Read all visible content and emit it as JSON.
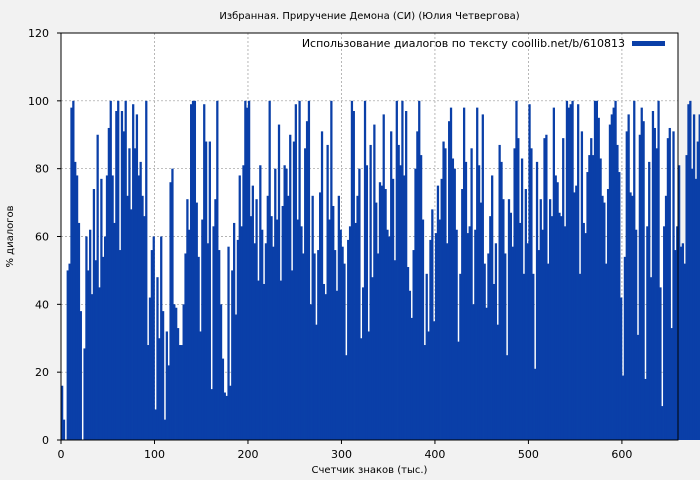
{
  "chart_data": {
    "type": "bar",
    "title": "Избранная. Приручение Демона (СИ) (Юлия Четвергова)",
    "xlabel": "Счетчик знаков (тыс.)",
    "ylabel": "% диалогов",
    "xlim": [
      0,
      660
    ],
    "ylim": [
      0,
      120
    ],
    "xticks": [
      0,
      100,
      200,
      300,
      400,
      500,
      600
    ],
    "yticks": [
      0,
      20,
      40,
      60,
      80,
      100,
      120
    ],
    "grid": true,
    "legend_position": "top-right",
    "bar_color": "#0a3fa8",
    "series": [
      {
        "name": "Использование диалогов по тексту coollib.net/b/610813",
        "x_start": 1,
        "x_step": 2,
        "values": [
          16,
          6,
          0,
          50,
          52,
          98,
          100,
          82,
          78,
          64,
          38,
          0,
          27,
          60,
          50,
          62,
          43,
          74,
          53,
          90,
          45,
          77,
          54,
          60,
          78,
          92,
          100,
          78,
          64,
          97,
          100,
          56,
          97,
          91,
          100,
          72,
          86,
          68,
          99,
          86,
          96,
          78,
          82,
          72,
          66,
          100,
          28,
          42,
          56,
          60,
          9,
          48,
          30,
          60,
          38,
          6,
          32,
          22,
          76,
          80,
          40,
          39,
          33,
          28,
          28,
          40,
          55,
          71,
          62,
          99,
          100,
          100,
          70,
          54,
          32,
          65,
          99,
          88,
          58,
          88,
          15,
          63,
          71,
          100,
          56,
          40,
          24,
          14,
          13,
          57,
          16,
          50,
          64,
          37,
          59,
          78,
          63,
          81,
          100,
          98,
          100,
          66,
          75,
          58,
          71,
          47,
          81,
          62,
          46,
          58,
          72,
          100,
          66,
          57,
          80,
          65,
          93,
          47,
          69,
          81,
          80,
          72,
          90,
          50,
          88,
          99,
          65,
          100,
          63,
          55,
          86,
          94,
          100,
          40,
          72,
          55,
          34,
          56,
          73,
          91,
          46,
          43,
          87,
          65,
          100,
          69,
          56,
          44,
          72,
          62,
          57,
          52,
          25,
          59,
          63,
          100,
          97,
          64,
          72,
          80,
          30,
          45,
          100,
          81,
          32,
          87,
          48,
          93,
          70,
          55,
          76,
          75,
          96,
          74,
          62,
          60,
          91,
          77,
          53,
          100,
          87,
          81,
          100,
          78,
          97,
          51,
          44,
          36,
          56,
          80,
          91,
          100,
          84,
          65,
          28,
          49,
          32,
          59,
          68,
          35,
          61,
          75,
          65,
          77,
          88,
          86,
          58,
          94,
          98,
          83,
          80,
          62,
          29,
          49,
          74,
          98,
          82,
          61,
          63,
          86,
          40,
          62,
          98,
          81,
          70,
          96,
          52,
          39,
          55,
          66,
          78,
          46,
          58,
          34,
          87,
          82,
          71,
          55,
          25,
          71,
          67,
          57,
          86,
          100,
          89,
          64,
          83,
          49,
          74,
          58,
          99,
          86,
          49,
          21,
          82,
          56,
          71,
          62,
          89,
          90,
          52,
          71,
          66,
          98,
          78,
          76,
          67,
          66,
          89,
          63,
          100,
          98,
          99,
          100,
          73,
          75,
          99,
          49,
          91,
          64,
          61,
          79,
          84,
          89,
          84,
          100,
          100,
          95,
          83,
          72,
          70,
          52,
          74,
          93,
          96,
          98,
          100,
          87,
          79,
          42,
          19,
          54,
          91,
          96,
          73,
          72,
          100,
          62,
          31,
          90,
          98,
          94,
          18,
          63,
          82,
          48,
          97,
          92,
          86,
          100,
          45,
          10,
          63,
          72,
          89,
          92,
          33,
          91,
          56,
          63,
          81,
          57,
          58,
          52,
          84,
          99,
          100,
          80,
          96,
          77,
          88,
          96,
          50,
          57,
          93,
          85,
          69,
          60,
          100
        ]
      }
    ]
  }
}
